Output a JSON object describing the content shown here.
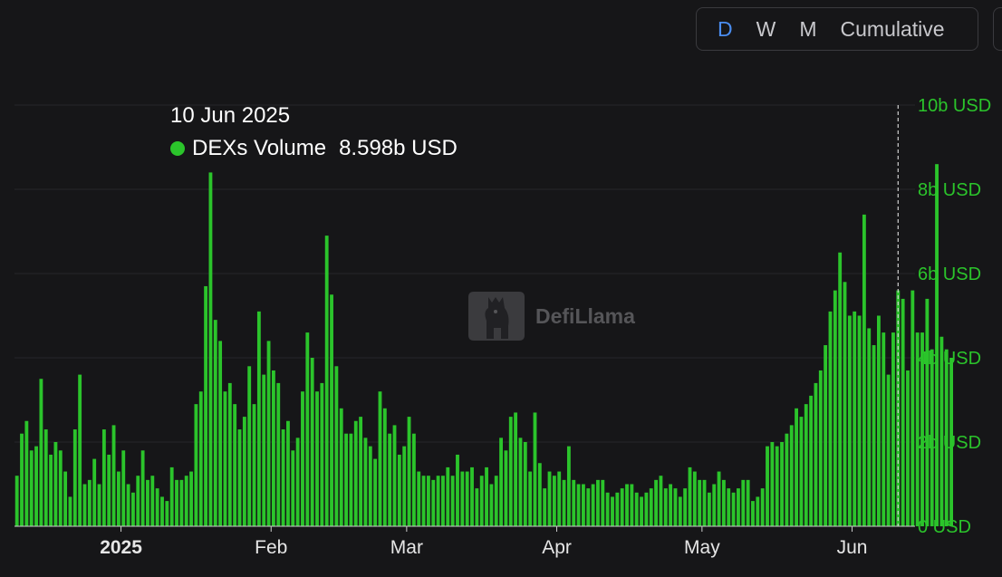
{
  "controls": {
    "buttons": [
      {
        "label": "D",
        "active": true
      },
      {
        "label": "W",
        "active": false
      },
      {
        "label": "M",
        "active": false
      },
      {
        "label": "Cumulative",
        "active": false
      }
    ]
  },
  "tooltip": {
    "date": "10 Jun 2025",
    "series_name": "DEXs Volume",
    "value": "8.598b USD"
  },
  "watermark": {
    "text": "DefiLlama"
  },
  "colors": {
    "bar": "#2bc42b",
    "axis_label": "#2bc42b",
    "background": "#161618",
    "grid": "#26262a",
    "accent": "#4a8df0"
  },
  "chart_data": {
    "type": "bar",
    "series": [
      {
        "name": "DEXs Volume",
        "color": "#2bc42b"
      }
    ],
    "x_start": "2024-12-10",
    "x_end": "2025-06-13",
    "x_ticks": [
      {
        "date": "2025-01-01",
        "label": "2025"
      },
      {
        "date": "2025-02-01",
        "label": "Feb"
      },
      {
        "date": "2025-03-01",
        "label": "Mar"
      },
      {
        "date": "2025-04-01",
        "label": "Apr"
      },
      {
        "date": "2025-05-01",
        "label": "May"
      },
      {
        "date": "2025-06-01",
        "label": "Jun"
      }
    ],
    "y_ticks": [
      {
        "value": 0,
        "label": "0 USD"
      },
      {
        "value": 2,
        "label": "2b USD"
      },
      {
        "value": 4,
        "label": "4b USD"
      },
      {
        "value": 6,
        "label": "6b USD"
      },
      {
        "value": 8,
        "label": "8b USD"
      },
      {
        "value": 10,
        "label": "10b USD"
      }
    ],
    "ylim": [
      0,
      10
    ],
    "y_unit": "b USD",
    "highlight_date": "2025-06-10",
    "daily_volume_b": [
      1.2,
      2.2,
      2.5,
      1.8,
      1.9,
      3.5,
      2.3,
      1.7,
      2.0,
      1.8,
      1.3,
      0.7,
      2.3,
      3.6,
      1.0,
      1.1,
      1.6,
      1.0,
      2.3,
      1.7,
      2.4,
      1.3,
      1.8,
      1.0,
      0.8,
      1.2,
      1.8,
      1.1,
      1.2,
      0.9,
      0.7,
      0.6,
      1.4,
      1.1,
      1.1,
      1.2,
      1.3,
      2.9,
      3.2,
      5.7,
      8.4,
      4.9,
      4.4,
      3.2,
      3.4,
      2.9,
      2.3,
      2.6,
      3.8,
      2.9,
      5.1,
      3.6,
      4.4,
      3.7,
      3.4,
      2.3,
      2.5,
      1.8,
      2.1,
      3.2,
      4.6,
      4.0,
      3.2,
      3.4,
      6.9,
      5.5,
      3.8,
      2.8,
      2.2,
      2.2,
      2.5,
      2.6,
      2.1,
      1.9,
      1.6,
      3.2,
      2.8,
      2.2,
      2.4,
      1.7,
      1.9,
      2.6,
      2.2,
      1.3,
      1.2,
      1.2,
      1.1,
      1.2,
      1.2,
      1.4,
      1.2,
      1.7,
      1.3,
      1.3,
      1.4,
      0.9,
      1.2,
      1.4,
      1.0,
      1.2,
      2.1,
      1.8,
      2.6,
      2.7,
      2.1,
      2.0,
      1.3,
      2.7,
      1.5,
      0.9,
      1.3,
      1.2,
      1.3,
      1.1,
      1.9,
      1.1,
      1.0,
      1.0,
      0.9,
      1.0,
      1.1,
      1.1,
      0.8,
      0.7,
      0.8,
      0.9,
      1.0,
      1.0,
      0.8,
      0.7,
      0.8,
      0.9,
      1.1,
      1.2,
      0.9,
      1.0,
      0.9,
      0.7,
      0.9,
      1.4,
      1.3,
      1.1,
      1.1,
      0.8,
      1.0,
      1.3,
      1.1,
      0.9,
      0.8,
      0.9,
      1.1,
      1.1,
      0.6,
      0.7,
      0.9,
      1.9,
      2.0,
      1.9,
      2.0,
      2.2,
      2.4,
      2.8,
      2.6,
      2.9,
      3.1,
      3.4,
      3.7,
      4.3,
      5.1,
      5.6,
      6.5,
      5.8,
      5.0,
      5.1,
      5.0,
      7.4,
      4.7,
      4.3,
      5.0,
      4.6,
      3.6,
      4.6,
      5.6,
      5.4,
      3.7,
      5.6,
      4.6,
      4.6,
      5.4,
      4.2,
      8.598,
      4.5,
      4.2,
      4.0
    ]
  },
  "axes": {
    "x_tick_labels": [
      "2025",
      "Feb",
      "Mar",
      "Apr",
      "May",
      "Jun"
    ],
    "y_tick_labels": [
      "0 USD",
      "2b USD",
      "4b USD",
      "6b USD",
      "8b USD",
      "10b USD"
    ]
  }
}
